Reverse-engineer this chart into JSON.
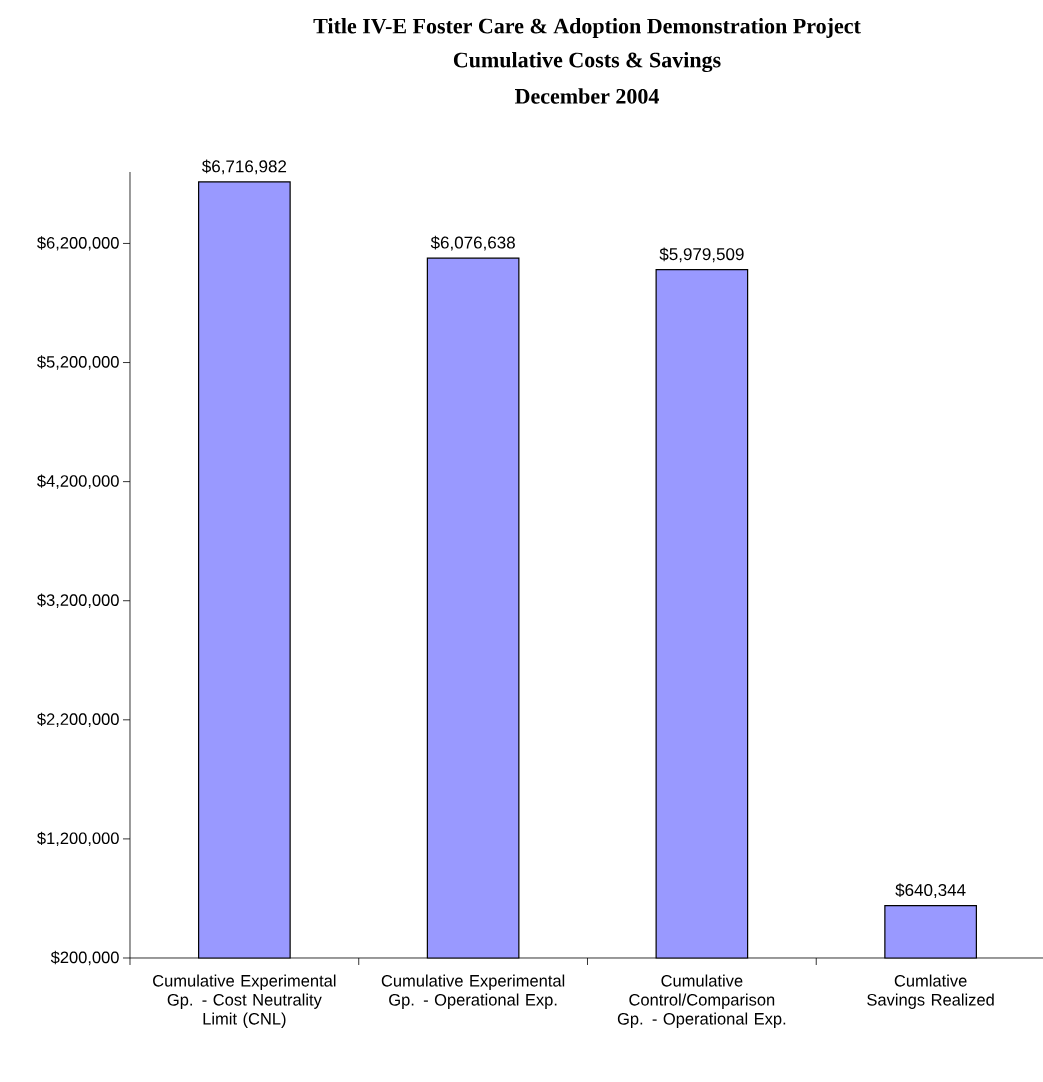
{
  "chart_data": {
    "type": "bar",
    "title": "Title IV-E Foster Care & Adoption Demonstration Project",
    "subtitle": "Cumulative Costs & Savings",
    "annotations": [
      "December 2004"
    ],
    "categories": [
      "Cumulative Experimental Gp. - Cost Neutrality Limit (CNL)",
      "Cumulative Experimental Gp. - Operational Exp.",
      "Cumulative Control/Comparison Gp. - Operational Exp.",
      "Cumlative Savings Realized"
    ],
    "values": [
      6716982,
      6076638,
      5979509,
      640344
    ],
    "value_labels": [
      "$6,716,982",
      "$6,076,638",
      "$5,979,509",
      "$640,344"
    ],
    "color": "#9999ff",
    "ylim": [
      200000,
      6800000
    ],
    "yticks": [
      {
        "value": 200000,
        "label": "$200,000"
      },
      {
        "value": 1200000,
        "label": "$1,200,000"
      },
      {
        "value": 2200000,
        "label": "$2,200,000"
      },
      {
        "value": 3200000,
        "label": "$3,200,000"
      },
      {
        "value": 4200000,
        "label": "$4,200,000"
      },
      {
        "value": 5200000,
        "label": "$5,200,000"
      },
      {
        "value": 6200000,
        "label": "$6,200,000"
      }
    ],
    "grid": false
  }
}
